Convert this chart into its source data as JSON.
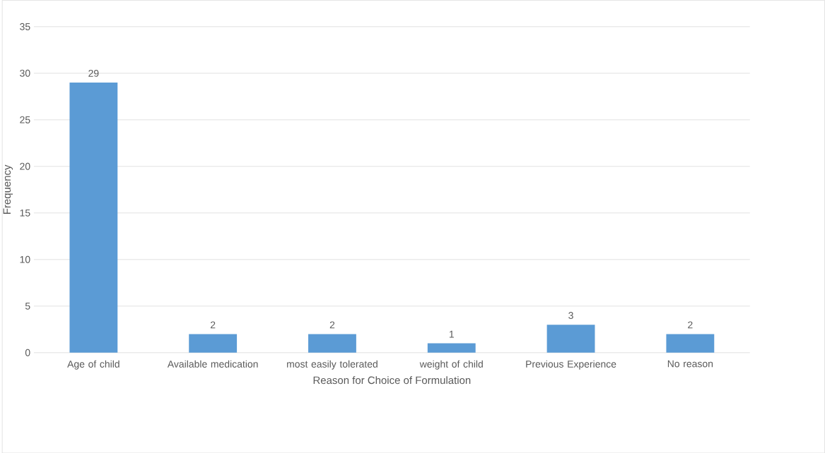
{
  "chart_data": {
    "type": "bar",
    "xlabel": "Reason for Choice of Formulation",
    "ylabel": "Frequency",
    "categories": [
      "Age of child",
      "Available medication",
      "most easily tolerated",
      "weight of child",
      "Previous Experience",
      "No reason"
    ],
    "values": [
      29,
      2,
      2,
      1,
      3,
      2
    ],
    "color": "#5b9bd5",
    "ylim": [
      0,
      35
    ],
    "yticks": [
      0,
      5,
      10,
      15,
      20,
      25,
      30,
      35
    ],
    "grid": "y",
    "data_labels": true
  }
}
